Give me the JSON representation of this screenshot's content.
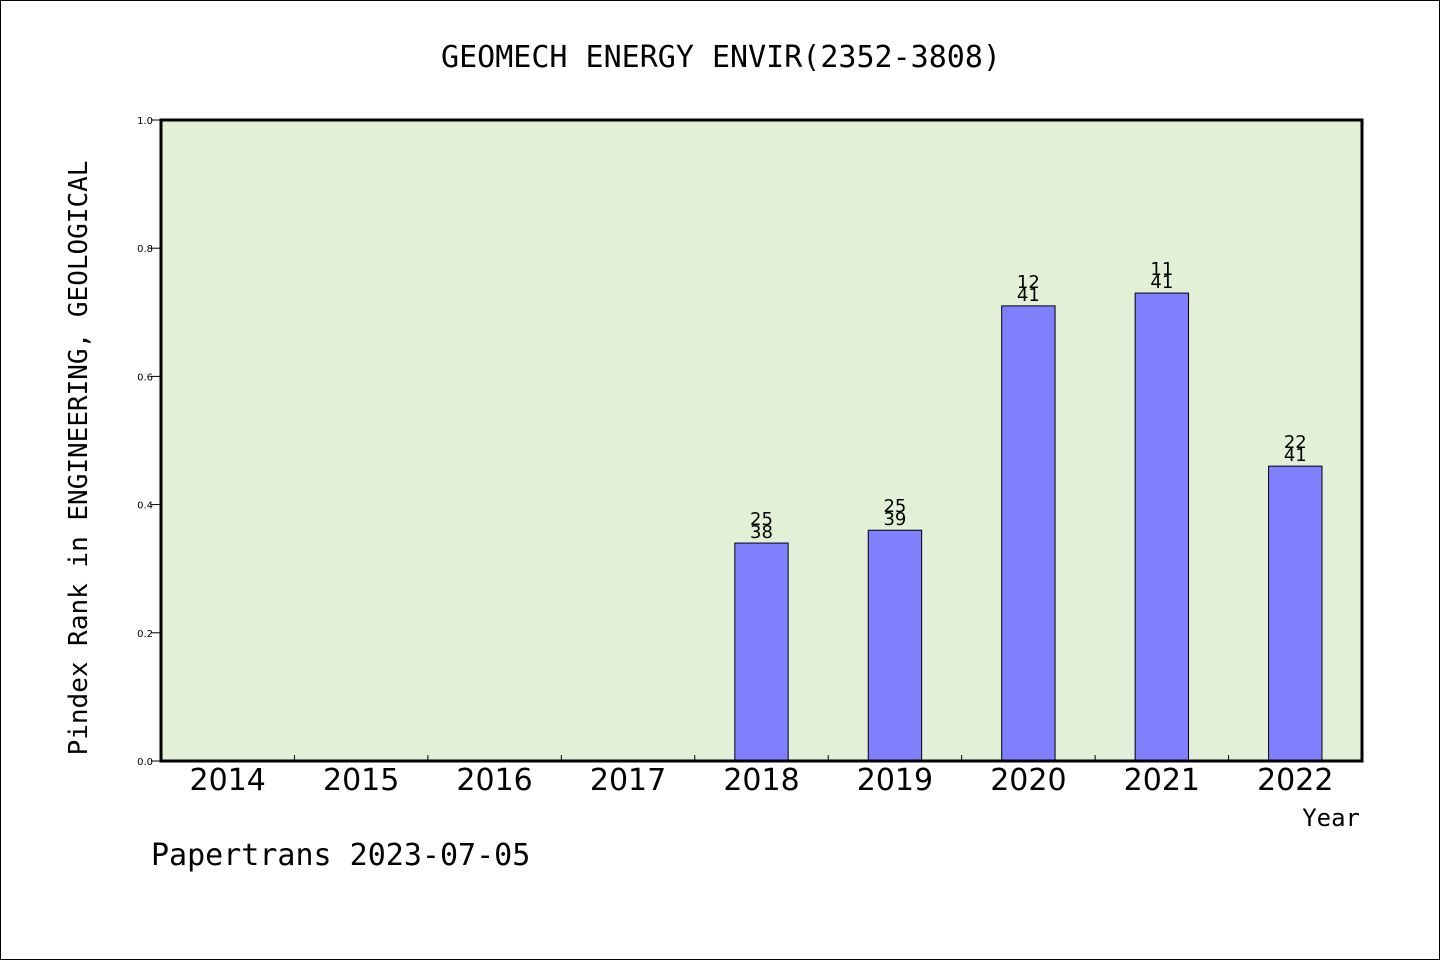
{
  "chart_data": {
    "type": "bar",
    "title": "GEOMECH ENERGY ENVIR(2352-3808)",
    "ylabel": "Pindex Rank in ENGINEERING, GEOLOGICAL",
    "xlabel": "Year",
    "categories": [
      "2014",
      "2015",
      "2016",
      "2017",
      "2018",
      "2019",
      "2020",
      "2021",
      "2022"
    ],
    "values": [
      null,
      null,
      null,
      null,
      0.34,
      0.36,
      0.71,
      0.73,
      0.46
    ],
    "rank_labels": [
      "",
      "",
      "",
      "",
      "25",
      "25",
      "12",
      "11",
      "22"
    ],
    "total_labels": [
      "",
      "",
      "",
      "",
      "38",
      "39",
      "41",
      "41",
      "41"
    ],
    "ylim": [
      0,
      1.0
    ],
    "yticks": [
      "0.0",
      "0.2",
      "0.4",
      "0.6",
      "0.8",
      "1.0"
    ],
    "grid": false,
    "bar_color": "#8080ff",
    "plot_background": "#e2f0d7"
  },
  "footer": "Papertrans 2023-07-05"
}
